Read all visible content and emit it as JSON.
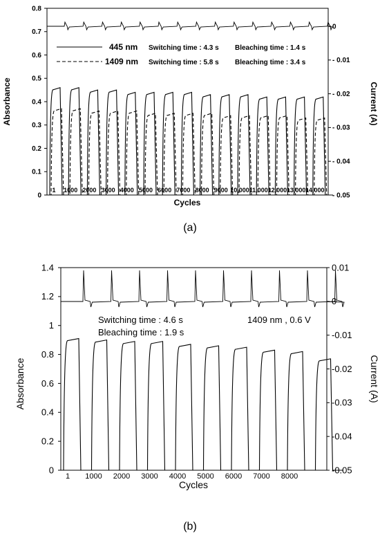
{
  "figure_labels": {
    "a": "(a)",
    "b": "(b)"
  },
  "chart_data": [
    {
      "type": "line",
      "id": "a",
      "xlabel": "Cycles",
      "ylabel": "Absorbance",
      "y2label": "Current (A)",
      "ylim": [
        0,
        0.8
      ],
      "y2lim": [
        -0.05,
        0.005
      ],
      "yticks": [
        "0",
        "0.1",
        "0.2",
        "0.3",
        "0.4",
        "0.5",
        "0.6",
        "0.7",
        "0.8"
      ],
      "y2ticks": [
        "0",
        "- 0.01",
        "- 0.02",
        "- 0.03",
        "- 0.04",
        "- 0.05"
      ],
      "xtick_labels": [
        "1",
        "1000",
        "2000",
        "3000",
        "4000",
        "5000",
        "6000",
        "7000",
        "8000",
        "9000",
        "10,000",
        "11,000",
        "12,000",
        "13,000",
        "14,000"
      ],
      "grid": false,
      "annotations": [
        {
          "wavelength": "445 nm",
          "switching": "Switching time : 4.3 s",
          "bleaching": "Bleaching time : 1.4 s"
        },
        {
          "wavelength": "1409 nm",
          "switching": "Switching time : 5.8 s",
          "bleaching": "Bleaching time : 3.4 s"
        }
      ],
      "series": [
        {
          "name": "445 nm",
          "style": "solid",
          "values": [
            0.46,
            0.46,
            0.45,
            0.45,
            0.44,
            0.44,
            0.44,
            0.44,
            0.43,
            0.43,
            0.43,
            0.42,
            0.42,
            0.42,
            0.42
          ]
        },
        {
          "name": "1409 nm",
          "style": "dashed",
          "values": [
            0.37,
            0.37,
            0.36,
            0.36,
            0.36,
            0.35,
            0.35,
            0.35,
            0.35,
            0.34,
            0.34,
            0.34,
            0.34,
            0.33,
            0.33
          ]
        },
        {
          "name": "Current",
          "axis": "right",
          "baseline": 0.0,
          "spike": 0.002,
          "dip": -0.0015
        }
      ]
    },
    {
      "type": "line",
      "id": "b",
      "xlabel": "Cycles",
      "ylabel": "Absorbance",
      "y2label": "Current (A)",
      "ylim": [
        0,
        1.4
      ],
      "y2lim": [
        -0.05,
        0.01
      ],
      "yticks": [
        "0",
        "0.2",
        "0.4",
        "0.6",
        "0.8",
        "1",
        "1.2",
        "1.4"
      ],
      "y2ticks": [
        "0.01",
        "0",
        "-0.01",
        "-0.02",
        "-0.03",
        "-0.04",
        "-0.05"
      ],
      "xtick_labels": [
        "1",
        "1000",
        "2000",
        "3000",
        "4000",
        "5000",
        "6000",
        "7000",
        "8000"
      ],
      "grid": false,
      "annotations": [
        {
          "text": "Switching time : 4.6 s"
        },
        {
          "text": "Bleaching time : 1.9 s"
        },
        {
          "text": "1409 nm , 0.6 V"
        }
      ],
      "series": [
        {
          "name": "1409 nm",
          "style": "solid",
          "values": [
            0.91,
            0.9,
            0.89,
            0.89,
            0.87,
            0.86,
            0.85,
            0.83,
            0.82,
            0.77
          ]
        },
        {
          "name": "Current",
          "axis": "right",
          "baseline": 0.0,
          "spike": 0.008,
          "dip": -0.002
        }
      ]
    }
  ]
}
